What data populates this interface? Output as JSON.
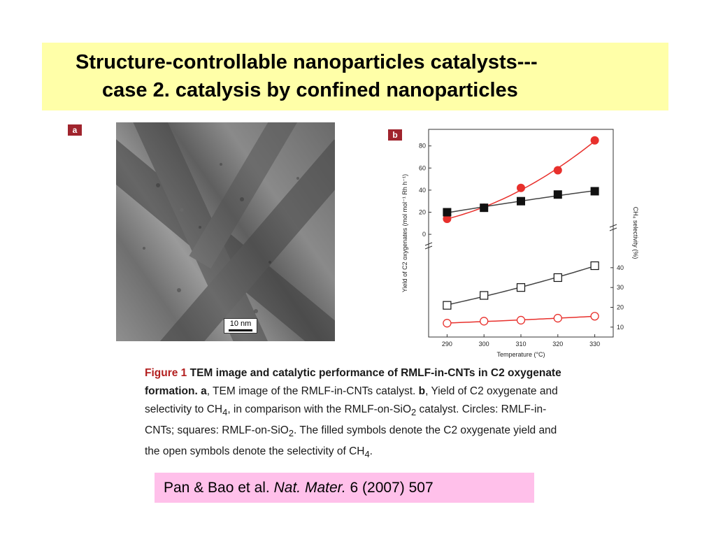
{
  "slide": {
    "title_line1": "Structure-controllable nanoparticles catalysts---",
    "title_line2": "case 2. catalysis by confined nanoparticles"
  },
  "figure": {
    "panel_a_label": "a",
    "panel_b_label": "b",
    "scale_bar_label": "10 nm",
    "caption": {
      "label": "Figure 1",
      "title": "TEM image and catalytic performance of RMLF-in-CNTs in C2 oxygenate formation.",
      "a_letter": "a",
      "a_text": ", TEM image of the RMLF-in-CNTs catalyst.",
      "b_letter": "b",
      "b_text_part1": ", Yield of C2 oxygenate and selectivity to CH",
      "b_sub1": "4",
      "b_text_part2": ", in comparison with the RMLF-on-SiO",
      "b_sub2": "2",
      "b_text_part3": " catalyst. Circles: RMLF-in-CNTs; squares: RMLF-on-SiO",
      "b_sub3": "2",
      "b_text_part4": ". The filled symbols denote the C2 oxygenate yield and the open symbols denote the selectivity of CH",
      "b_sub4": "4",
      "b_text_part5": "."
    }
  },
  "reference": {
    "authors": "Pan & Bao et al. ",
    "journal": "Nat. Mater.",
    "details": " 6 (2007) 507"
  },
  "chart_data": {
    "type": "scatter",
    "x": [
      290,
      300,
      310,
      320,
      330
    ],
    "xlabel": "Temperature (°C)",
    "ylabel_left": "Yield of C2 oxygenates (mol mol⁻¹ Rh h⁻¹)",
    "ylabel_right": "CH₄ selectivity (%)",
    "x_ticks": [
      "290",
      "300",
      "310",
      "320",
      "330"
    ],
    "y_left_ticks": [
      "0",
      "20",
      "40",
      "60",
      "80"
    ],
    "y_right_ticks": [
      "10",
      "20",
      "30",
      "40"
    ],
    "y_left_range": [
      -5,
      95
    ],
    "y_right_range": [
      5,
      47
    ],
    "series": [
      {
        "marker": "filled-circle",
        "color": "#e8302c",
        "axis": "left",
        "values": [
          14,
          24,
          42,
          58,
          85
        ],
        "fit": "curve"
      },
      {
        "marker": "filled-square",
        "color": "#111111",
        "axis": "left",
        "values": [
          20,
          24,
          30,
          36,
          39
        ],
        "fit": "curve"
      },
      {
        "marker": "open-square",
        "color": "#111111",
        "axis": "right",
        "values": [
          21,
          26,
          30,
          35,
          41
        ],
        "fit": "curve"
      },
      {
        "marker": "open-circle",
        "color": "#e8302c",
        "axis": "right",
        "values": [
          12,
          13,
          13.5,
          14.5,
          15.5
        ],
        "fit": "curve"
      }
    ]
  }
}
